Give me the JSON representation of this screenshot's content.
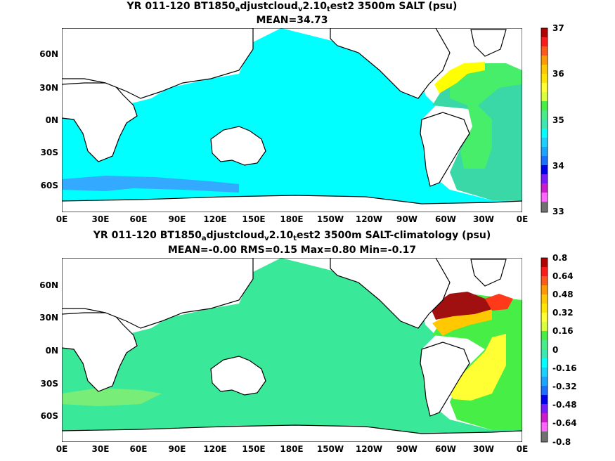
{
  "panels": [
    {
      "title_a": "YR 011-120 BT1850",
      "sub1": "a",
      "title_b": "djustcloud",
      "sub2": "v",
      "title_c": "2.10",
      "sub3": "t",
      "title_d": "est2 3500m SALT (psu)",
      "stats": "MEAN=34.73",
      "colorbar_labels": [
        "37",
        "36",
        "35",
        "34",
        "33"
      ]
    },
    {
      "title_a": "YR 011-120 BT1850",
      "sub1": "a",
      "title_b": "djustcloud",
      "sub2": "v",
      "title_c": "2.10",
      "sub3": "t",
      "title_d": "est2 3500m SALT-climatology (psu)",
      "stats": "MEAN=-0.00   RMS=0.15   Max=0.80   Min=-0.17",
      "colorbar_labels": [
        "0.8",
        "0.64",
        "0.48",
        "0.32",
        "0.16",
        "0",
        "-0.16",
        "-0.32",
        "-0.48",
        "-0.64",
        "-0.8"
      ]
    }
  ],
  "lat_labels": [
    "60N",
    "30N",
    "0N",
    "30S",
    "60S"
  ],
  "lon_labels": [
    "0E",
    "30E",
    "60E",
    "90E",
    "120E",
    "150E",
    "180E",
    "150W",
    "120W",
    "90W",
    "60W",
    "30W",
    "0E"
  ],
  "colors": {
    "ocean_main_top": "#00ffff",
    "ocean_south_top": "#3ad8a6",
    "ocean_main_bottom": "#3ae89a",
    "atlantic_high": "#ffff00",
    "atlantic_max": "#cc1111",
    "land": "#ffffff"
  }
}
